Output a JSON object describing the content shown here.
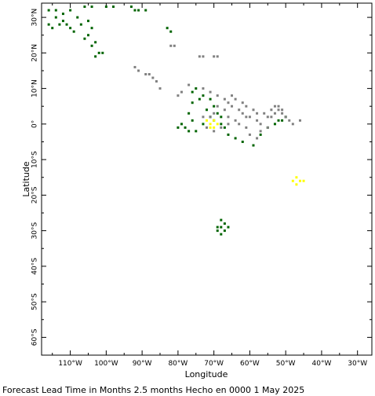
{
  "caption": "Forecast Lead Time in Months 2.5 months Hecho en 0000 1 May 2025",
  "colors": {
    "frame": "#000000",
    "green_points": "#006400",
    "gray_points": "#808080",
    "yellow_points": "#ffff00"
  },
  "chart_data": {
    "type": "scatter",
    "xlabel": "Longitude",
    "ylabel": "Latitude",
    "xlim": [
      -118,
      -26
    ],
    "ylim": [
      -65,
      34
    ],
    "x_ticks": [
      {
        "value": -110,
        "label": "110°W"
      },
      {
        "value": -100,
        "label": "100°W"
      },
      {
        "value": -90,
        "label": "90°W"
      },
      {
        "value": -80,
        "label": "80°W"
      },
      {
        "value": -70,
        "label": "70°W"
      },
      {
        "value": -60,
        "label": "60°W"
      },
      {
        "value": -50,
        "label": "50°W"
      },
      {
        "value": -40,
        "label": "40°W"
      },
      {
        "value": -30,
        "label": "30°W"
      }
    ],
    "y_ticks": [
      {
        "value": 30,
        "label": "30°N"
      },
      {
        "value": 20,
        "label": "20°N"
      },
      {
        "value": 10,
        "label": "10°N"
      },
      {
        "value": 0,
        "label": "0°"
      },
      {
        "value": -10,
        "label": "10°S"
      },
      {
        "value": -20,
        "label": "20°S"
      },
      {
        "value": -30,
        "label": "30°S"
      },
      {
        "value": -40,
        "label": "40°S"
      },
      {
        "value": -50,
        "label": "50°S"
      },
      {
        "value": -60,
        "label": "60°S"
      }
    ],
    "series": [
      {
        "color": "#006400",
        "points": [
          [
            -116,
            32
          ],
          [
            -114,
            32
          ],
          [
            -112,
            31
          ],
          [
            -110,
            32
          ],
          [
            -108,
            30
          ],
          [
            -114,
            30
          ],
          [
            -112,
            29
          ],
          [
            -111,
            28
          ],
          [
            -113,
            28
          ],
          [
            -116,
            28
          ],
          [
            -115,
            27
          ],
          [
            -110,
            27
          ],
          [
            -109,
            26
          ],
          [
            -107,
            28
          ],
          [
            -105,
            29
          ],
          [
            -104,
            27
          ],
          [
            -105,
            25
          ],
          [
            -106,
            24
          ],
          [
            -104,
            22
          ],
          [
            -103,
            23
          ],
          [
            -102,
            20
          ],
          [
            -103,
            19
          ],
          [
            -101,
            20
          ],
          [
            -100,
            33
          ],
          [
            -98,
            33
          ],
          [
            -106,
            33
          ],
          [
            -104,
            33
          ],
          [
            -93,
            33
          ],
          [
            -92,
            32
          ],
          [
            -91,
            32
          ],
          [
            -89,
            32
          ],
          [
            -83,
            27
          ],
          [
            -82,
            26
          ],
          [
            -76,
            9
          ],
          [
            -75,
            10
          ],
          [
            -73,
            8
          ],
          [
            -71,
            7
          ],
          [
            -70,
            5
          ],
          [
            -69,
            3
          ],
          [
            -68,
            2
          ],
          [
            -72,
            4
          ],
          [
            -74,
            7
          ],
          [
            -76,
            6
          ],
          [
            -77,
            3
          ],
          [
            -76,
            1
          ],
          [
            -77,
            -2
          ],
          [
            -75,
            -2
          ],
          [
            -73,
            0
          ],
          [
            -71,
            2
          ],
          [
            -70,
            1
          ],
          [
            -68,
            0
          ],
          [
            -67,
            -1
          ],
          [
            -66,
            -3
          ],
          [
            -64,
            -4
          ],
          [
            -62,
            -5
          ],
          [
            -59,
            -6
          ],
          [
            -57,
            -3
          ],
          [
            -55,
            -1
          ],
          [
            -53,
            0
          ],
          [
            -52,
            1
          ],
          [
            -51,
            1
          ],
          [
            -50,
            2
          ],
          [
            -79,
            0
          ],
          [
            -80,
            -1
          ],
          [
            -78,
            -1
          ],
          [
            -68,
            -27
          ],
          [
            -67,
            -28
          ],
          [
            -68,
            -29
          ],
          [
            -69,
            -30
          ],
          [
            -67,
            -30
          ],
          [
            -66,
            -29
          ],
          [
            -68,
            -31
          ],
          [
            -69,
            -29
          ]
        ]
      },
      {
        "color": "#808080",
        "points": [
          [
            -92,
            16
          ],
          [
            -91,
            15
          ],
          [
            -89,
            14
          ],
          [
            -88,
            14
          ],
          [
            -87,
            13
          ],
          [
            -86,
            12
          ],
          [
            -85,
            10
          ],
          [
            -82,
            22
          ],
          [
            -81,
            22
          ],
          [
            -74,
            19
          ],
          [
            -73,
            19
          ],
          [
            -70,
            19
          ],
          [
            -69,
            19
          ],
          [
            -80,
            8
          ],
          [
            -79,
            9
          ],
          [
            -77,
            11
          ],
          [
            -73,
            10
          ],
          [
            -71,
            9
          ],
          [
            -69,
            8
          ],
          [
            -67,
            7
          ],
          [
            -66,
            6
          ],
          [
            -65,
            5
          ],
          [
            -63,
            4
          ],
          [
            -62,
            3
          ],
          [
            -60,
            2
          ],
          [
            -58,
            1
          ],
          [
            -57,
            0
          ],
          [
            -55,
            -1
          ],
          [
            -54,
            2
          ],
          [
            -53,
            3
          ],
          [
            -52,
            4
          ],
          [
            -51,
            3
          ],
          [
            -50,
            2
          ],
          [
            -56,
            3
          ],
          [
            -58,
            3
          ],
          [
            -61,
            2
          ],
          [
            -64,
            1
          ],
          [
            -66,
            0
          ],
          [
            -68,
            -1
          ],
          [
            -70,
            -2
          ],
          [
            -72,
            -1
          ],
          [
            -73,
            2
          ],
          [
            -66,
            2
          ],
          [
            -63,
            0
          ],
          [
            -61,
            -1
          ],
          [
            -60,
            -3
          ],
          [
            -58,
            -4
          ],
          [
            -57,
            -2
          ],
          [
            -55,
            2
          ],
          [
            -54,
            4
          ],
          [
            -53,
            5
          ],
          [
            -52,
            5
          ],
          [
            -51,
            4
          ],
          [
            -49,
            1
          ],
          [
            -48,
            0
          ],
          [
            -46,
            1
          ],
          [
            -59,
            4
          ],
          [
            -61,
            5
          ],
          [
            -62,
            6
          ],
          [
            -64,
            7
          ],
          [
            -65,
            8
          ],
          [
            -67,
            4
          ],
          [
            -69,
            5
          ],
          [
            -70,
            3
          ],
          [
            -71,
            2
          ]
        ]
      },
      {
        "color": "#ffff00",
        "points": [
          [
            -71,
            0
          ],
          [
            -70,
            1
          ],
          [
            -69,
            0
          ],
          [
            -71,
            -1
          ],
          [
            -70,
            -1
          ],
          [
            -72,
            1
          ],
          [
            -48,
            -16
          ],
          [
            -47,
            -15
          ],
          [
            -46,
            -16
          ],
          [
            -47,
            -17
          ],
          [
            -45,
            -16
          ]
        ]
      }
    ]
  }
}
